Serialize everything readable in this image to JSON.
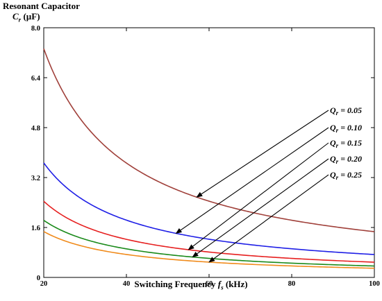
{
  "chart_data": {
    "type": "line",
    "title": "",
    "ylabel_line1": "Resonant Capacitor",
    "ylabel_symbol": "C",
    "ylabel_subscript": "r",
    "ylabel_unit": " (µF)",
    "xlabel_text": "Switching Frequency ",
    "xlabel_symbol": "f",
    "xlabel_subscript": "s",
    "xlabel_unit": " (kHz)",
    "xlim": [
      20,
      100
    ],
    "ylim": [
      0,
      8.0
    ],
    "xticks": [
      20,
      40,
      60,
      80,
      100
    ],
    "xtick_labels": [
      "20",
      "40",
      "60",
      "80",
      "100"
    ],
    "yticks": [
      0,
      1.6,
      3.2,
      4.8,
      6.4,
      8.0
    ],
    "ytick_labels": [
      "0",
      "1.6",
      "3.2",
      "4.8",
      "6.4",
      "8.0"
    ],
    "grid": false,
    "x": [
      20,
      30,
      40,
      50,
      60,
      70,
      80,
      90,
      100
    ],
    "series": [
      {
        "name": "Qr = 0.05",
        "label_symbol": "Q",
        "label_subscript": "r",
        "label_value": " = 0.05",
        "color": "#a0403a",
        "values": [
          7.33,
          4.89,
          3.67,
          2.93,
          2.44,
          2.09,
          1.83,
          1.63,
          1.47
        ]
      },
      {
        "name": "Qr = 0.10",
        "label_symbol": "Q",
        "label_subscript": "r",
        "label_value": " = 0.10",
        "color": "#1f1fe6",
        "values": [
          3.67,
          2.44,
          1.83,
          1.47,
          1.22,
          1.05,
          0.92,
          0.81,
          0.73
        ]
      },
      {
        "name": "Qr = 0.15",
        "label_symbol": "Q",
        "label_subscript": "r",
        "label_value": " = 0.15",
        "color": "#e61f1f",
        "values": [
          2.44,
          1.63,
          1.22,
          0.98,
          0.81,
          0.7,
          0.61,
          0.54,
          0.49
        ]
      },
      {
        "name": "Qr = 0.20",
        "label_symbol": "Q",
        "label_subscript": "r",
        "label_value": " = 0.20",
        "color": "#1a8a1a",
        "values": [
          1.83,
          1.22,
          0.92,
          0.73,
          0.61,
          0.52,
          0.46,
          0.41,
          0.37
        ]
      },
      {
        "name": "Qr = 0.25",
        "label_symbol": "Q",
        "label_subscript": "r",
        "label_value": " = 0.25",
        "color": "#f08a1a",
        "values": [
          1.47,
          0.98,
          0.73,
          0.59,
          0.49,
          0.42,
          0.37,
          0.33,
          0.29
        ]
      }
    ],
    "arrow_targets_x": [
      57,
      52,
      55,
      56,
      60
    ]
  }
}
